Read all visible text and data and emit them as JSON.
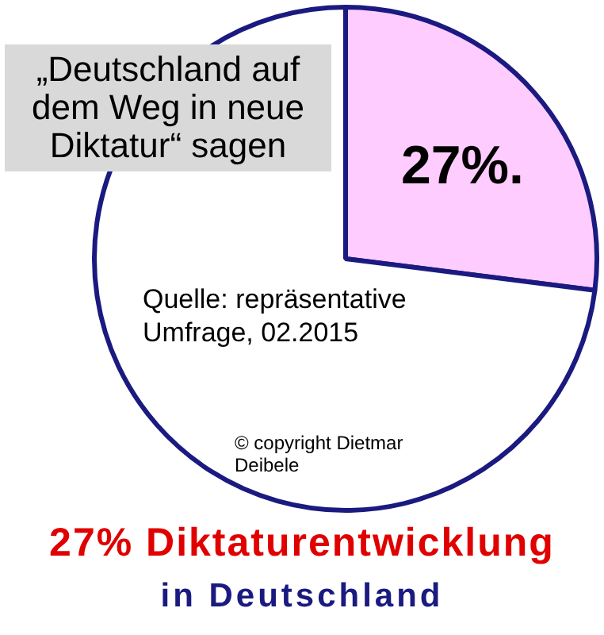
{
  "chart_data": {
    "type": "pie",
    "title": "27% Diktaturentwicklung",
    "subtitle": "in Deutschland",
    "categories": [
      null,
      null
    ],
    "values": [
      27,
      73
    ],
    "colors": [
      "#ffccff",
      "#ffffff"
    ],
    "value_labels": [
      "27%.",
      null
    ],
    "legend": false,
    "annotations": [
      "„Deutschland auf dem Weg in neue Diktatur“ sagen",
      "Quelle: repräsentative Umfrage, 02.2015",
      "© copyright Dietmar Deibele"
    ]
  }
}
